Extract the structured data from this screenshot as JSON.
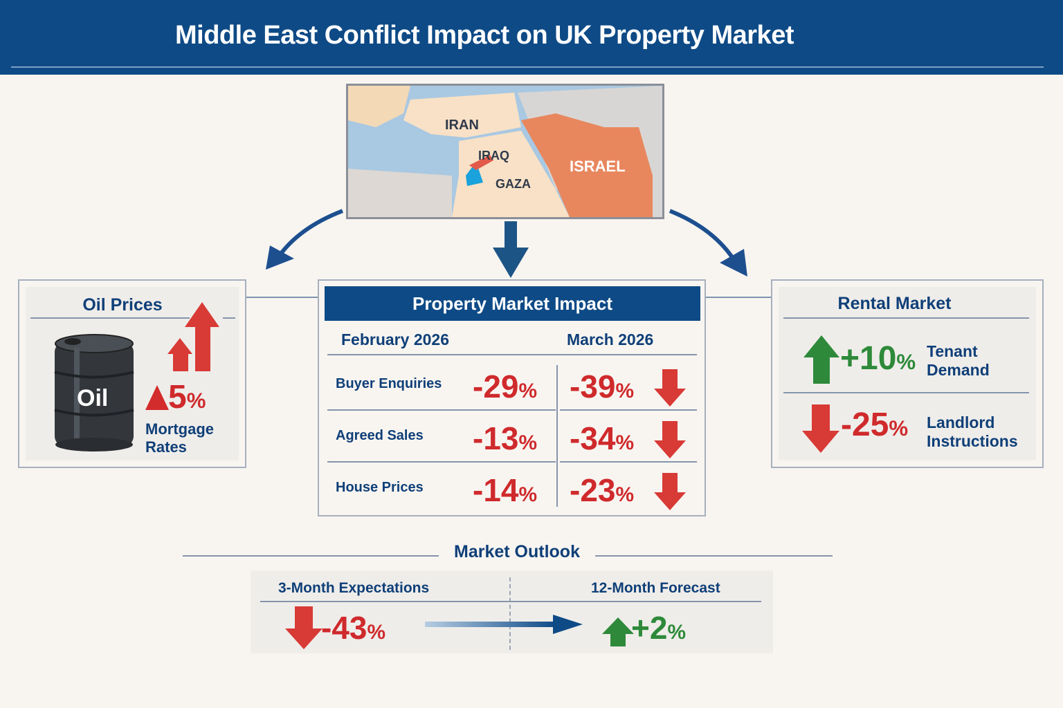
{
  "title": "Middle East Conflict Impact on UK Property Market",
  "map": {
    "labels": [
      "IRAN",
      "IRAQ",
      "GAZA",
      "ISRAEL"
    ]
  },
  "oil": {
    "title": "Oil Prices",
    "barrel_label": "Oil",
    "change": "5",
    "pct": "%",
    "caption_line1": "Mortgage",
    "caption_line2": "Rates"
  },
  "impact": {
    "title": "Property Market Impact",
    "col1": "February 2026",
    "col2": "March 2026",
    "rows": [
      {
        "label": "Buyer Enquiries",
        "feb": "-29",
        "mar": "-39"
      },
      {
        "label": "Agreed Sales",
        "feb": "-13",
        "mar": "-34"
      },
      {
        "label": "House Prices",
        "feb": "-14",
        "mar": "-23"
      }
    ],
    "pct": "%"
  },
  "rental": {
    "title": "Rental Market",
    "up_value": "+10",
    "up_l1": "Tenant",
    "up_l2": "Demand",
    "down_value": "-25",
    "down_l1": "Landlord",
    "down_l2": "Instructions",
    "pct": "%"
  },
  "outlook": {
    "title": "Market Outlook",
    "left_title": "3-Month Expectations",
    "left_value": "-43",
    "right_title": "12-Month Forecast",
    "right_value": "+2",
    "pct": "%"
  },
  "colors": {
    "navy": "#0e4a86",
    "red": "#cf2a2c",
    "green": "#2e8a3a"
  }
}
